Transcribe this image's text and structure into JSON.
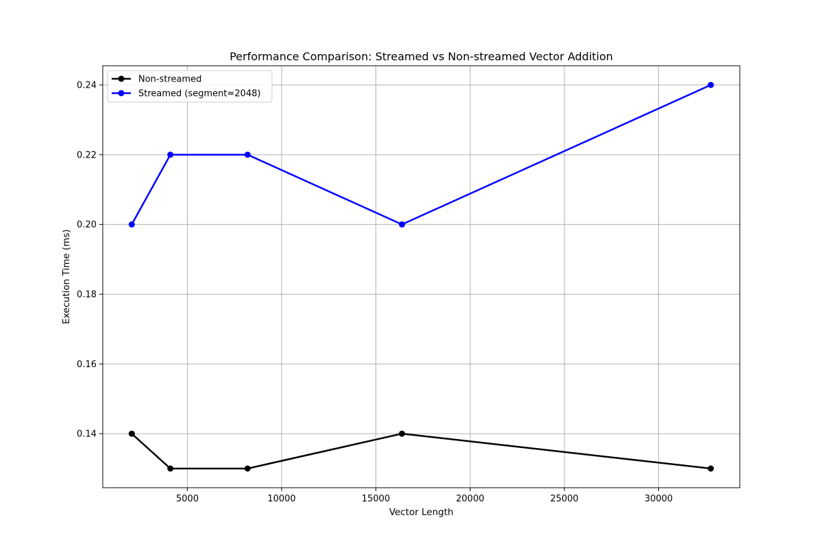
{
  "chart_data": {
    "type": "line",
    "title": "Performance Comparison: Streamed vs Non-streamed Vector Addition",
    "xlabel": "Vector Length",
    "ylabel": "Execution Time (ms)",
    "x": [
      2048,
      4096,
      8192,
      16384,
      32768
    ],
    "xlim": [
      509.6,
      34306.4
    ],
    "ylim": [
      0.1245,
      0.2455
    ],
    "xticks": [
      5000,
      10000,
      15000,
      20000,
      25000,
      30000
    ],
    "yticks": [
      0.14,
      0.16,
      0.18,
      0.2,
      0.22,
      0.24
    ],
    "xtick_labels": [
      "5000",
      "10000",
      "15000",
      "20000",
      "25000",
      "30000"
    ],
    "ytick_labels": [
      "0.14",
      "0.16",
      "0.18",
      "0.20",
      "0.22",
      "0.24"
    ],
    "grid": true,
    "legend_position": "top-left",
    "series": [
      {
        "name": "Non-streamed",
        "color": "#000000",
        "marker": "circle",
        "values": [
          0.14,
          0.13,
          0.13,
          0.14,
          0.13
        ]
      },
      {
        "name": "Streamed (segment=2048)",
        "color": "#0000ff",
        "marker": "circle",
        "values": [
          0.2,
          0.22,
          0.22,
          0.2,
          0.24
        ]
      }
    ]
  }
}
